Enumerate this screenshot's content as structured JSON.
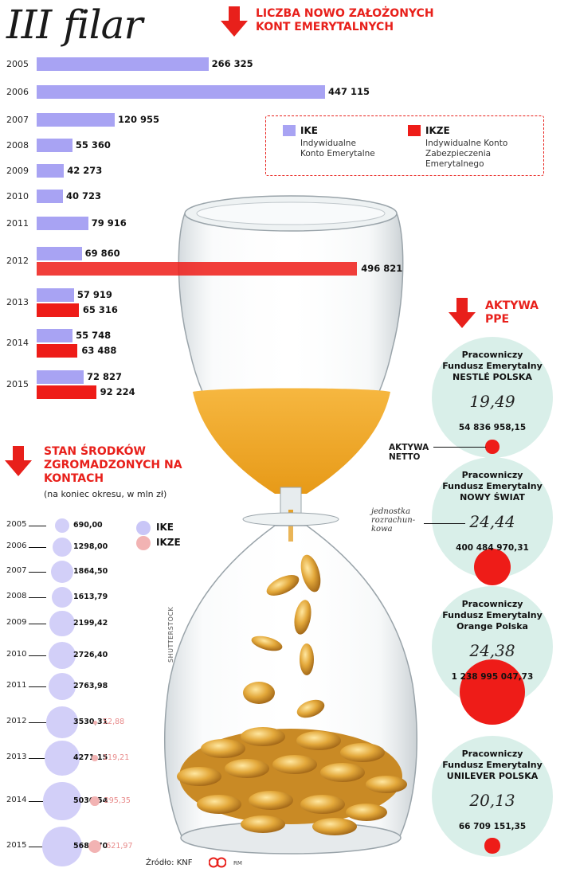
{
  "title": "III filar",
  "accounts_heading": "LICZBA NOWO ZAŁOŻONYCH KONT EMERYTALNYCH",
  "legend": {
    "ike_label": "IKE",
    "ike_desc_1": "Indywidualne",
    "ike_desc_2": "Konto Emerytalne",
    "ikze_label": "IKZE",
    "ikze_desc_1": "Indywidualne Konto",
    "ikze_desc_2": "Zabezpieczenia",
    "ikze_desc_3": "Emerytalnego"
  },
  "funds_heading": "STAN ŚRODKÓW ZGROMADZONYCH NA KONTACH",
  "funds_subtitle": "(na koniec okresu, w mln zł)",
  "funds_legend": {
    "ike": "IKE",
    "ikze": "IKZE"
  },
  "ppe_heading": "AKTYWA PPE",
  "ppe_net_label": "AKTYWA NETTO",
  "ppe_unit_note": "jednostka rozrachun- kowa",
  "watermark": "SHUTTERSTOCK",
  "source": "Źródło: KNF",
  "credit": "RM",
  "colors": {
    "ike": "#a8a3f3",
    "ikze": "#ee1c18",
    "ppe_bg": "#d9efe9",
    "accent": "#e8201b"
  },
  "chart_data": [
    {
      "type": "bar",
      "title": "LICZBA NOWO ZAŁOŻONYCH KONT EMERYTALNYCH",
      "categories": [
        "2005",
        "2006",
        "2007",
        "2008",
        "2009",
        "2010",
        "2011",
        "2012",
        "2013",
        "2014",
        "2015"
      ],
      "series": [
        {
          "name": "IKE",
          "values": [
            266325,
            447115,
            120955,
            55360,
            42273,
            40723,
            79916,
            69860,
            57919,
            55748,
            72827
          ],
          "labels": [
            "266 325",
            "447 115",
            "120 955",
            "55 360",
            "42 273",
            "40 723",
            "79 916",
            "69 860",
            "57 919",
            "55 748",
            "72 827"
          ]
        },
        {
          "name": "IKZE",
          "values": [
            null,
            null,
            null,
            null,
            null,
            null,
            null,
            496821,
            65316,
            63488,
            92224
          ],
          "labels": [
            "",
            "",
            "",
            "",
            "",
            "",
            "",
            "496 821",
            "65 316",
            "63 488",
            "92 224"
          ]
        }
      ]
    },
    {
      "type": "scatter",
      "title": "STAN ŚRODKÓW ZGROMADZONYCH NA KONTACH",
      "subtitle": "(na koniec okresu, w mln zł)",
      "categories": [
        "2005",
        "2006",
        "2007",
        "2008",
        "2009",
        "2010",
        "2011",
        "2012",
        "2013",
        "2014",
        "2015"
      ],
      "series": [
        {
          "name": "IKE",
          "values": [
            690.0,
            1298.0,
            1864.5,
            1613.79,
            2199.42,
            2726.4,
            2763.98,
            3530.31,
            4271.15,
            5030.54,
            5682.7
          ],
          "labels": [
            "690,00",
            "1298,00",
            "1864,50",
            "1613,79",
            "2199,42",
            "2726,40",
            "2763,98",
            "3530,31",
            "4271,15",
            "5030,54",
            "5682,70"
          ]
        },
        {
          "name": "IKZE",
          "values": [
            null,
            null,
            null,
            null,
            null,
            null,
            null,
            52.88,
            119.21,
            295.35,
            621.97
          ],
          "labels": [
            "",
            "",
            "",
            "",
            "",
            "",
            "",
            "52,88",
            "119,21",
            "295,35",
            "621,97"
          ]
        }
      ]
    },
    {
      "type": "scatter",
      "title": "AKTYWA PPE",
      "funds": [
        {
          "name_1": "Pracowniczy",
          "name_2": "Fundusz Emerytalny",
          "name_3": "NESTLÉ POLSKA",
          "unit": "19,49",
          "net_assets": 54836958.15,
          "net_label": "54 836 958,15"
        },
        {
          "name_1": "Pracowniczy",
          "name_2": "Fundusz Emerytalny",
          "name_3": "NOWY ŚWIAT",
          "unit": "24,44",
          "net_assets": 400484970.31,
          "net_label": "400 484 970,31"
        },
        {
          "name_1": "Pracowniczy",
          "name_2": "Fundusz Emerytalny",
          "name_3": "Orange Polska",
          "unit": "24,38",
          "net_assets": 1238995047.73,
          "net_label": "1 238 995 047,73"
        },
        {
          "name_1": "Pracowniczy",
          "name_2": "Fundusz Emerytalny",
          "name_3": "UNILEVER POLSKA",
          "unit": "20,13",
          "net_assets": 66709151.35,
          "net_label": "66 709 151,35"
        }
      ]
    }
  ]
}
